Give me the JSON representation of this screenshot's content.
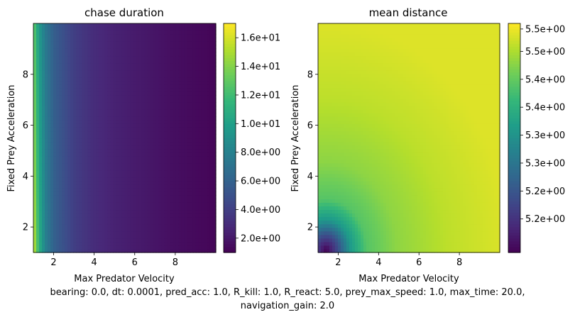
{
  "figure": {
    "footer_line1": "bearing: 0.0, dt: 0.0001, pred_acc: 1.0, R_kill: 1.0, R_react: 5.0, prey_max_speed: 1.0, max_time: 20.0,",
    "footer_line2": "navigation_gain: 2.0"
  },
  "chart_data": [
    {
      "type": "heatmap",
      "title": "chase duration",
      "xlabel": "Max Predator Velocity",
      "ylabel": "Fixed Prey Acceleration",
      "xlim": [
        1.0,
        10.0
      ],
      "ylim": [
        1.0,
        10.0
      ],
      "xticks": [
        2,
        4,
        6,
        8
      ],
      "yticks": [
        2,
        4,
        6,
        8
      ],
      "colormap": "viridis",
      "colorbar": {
        "min": 1.0,
        "max": 17.0,
        "ticks": [
          2.0,
          4.0,
          6.0,
          8.0,
          10.0,
          12.0,
          14.0,
          16.0
        ],
        "tick_labels": [
          "2.0e+00",
          "4.0e+00",
          "6.0e+00",
          "8.0e+00",
          "1.0e+01",
          "1.2e+01",
          "1.4e+01",
          "1.6e+01"
        ]
      },
      "profile": {
        "x": [
          1.0,
          1.1,
          1.3,
          1.6,
          2.0,
          3.0,
          4.0,
          5.0,
          6.0,
          7.0,
          8.0,
          9.0,
          10.0
        ],
        "y_low": [
          16.5,
          14.0,
          11.0,
          8.0,
          6.0,
          4.0,
          3.0,
          2.5,
          2.2,
          1.9,
          1.6,
          1.4,
          1.2
        ],
        "y_high": [
          14.0,
          11.5,
          9.5,
          7.5,
          5.8,
          4.0,
          3.0,
          2.5,
          2.2,
          1.9,
          1.6,
          1.4,
          1.2
        ]
      }
    },
    {
      "type": "heatmap",
      "title": "mean distance",
      "xlabel": "Max Predator Velocity",
      "ylabel": "Fixed Prey Acceleration",
      "xlim": [
        1.0,
        10.0
      ],
      "ylim": [
        1.0,
        10.0
      ],
      "xticks": [
        2,
        4,
        6,
        8
      ],
      "yticks": [
        2,
        4,
        6,
        8
      ],
      "colormap": "viridis",
      "colorbar": {
        "min": 5.12,
        "max": 5.53,
        "ticks": [
          5.18,
          5.23,
          5.28,
          5.33,
          5.38,
          5.43,
          5.48,
          5.52
        ],
        "tick_labels": [
          "5.2e+00",
          "5.2e+00",
          "5.3e+00",
          "5.3e+00",
          "5.4e+00",
          "5.4e+00",
          "5.5e+00",
          "5.5e+00"
        ]
      },
      "field": {
        "max_value": 5.52,
        "min_value": 5.12,
        "center_x": 1.4,
        "center_y": 1.1,
        "radial_drop": [
          [
            0,
            0.4
          ],
          [
            0.6,
            0.3
          ],
          [
            1.2,
            0.18
          ],
          [
            2.0,
            0.1
          ],
          [
            3.5,
            0.06
          ],
          [
            6.0,
            0.03
          ],
          [
            9.0,
            0.01
          ]
        ]
      }
    }
  ]
}
